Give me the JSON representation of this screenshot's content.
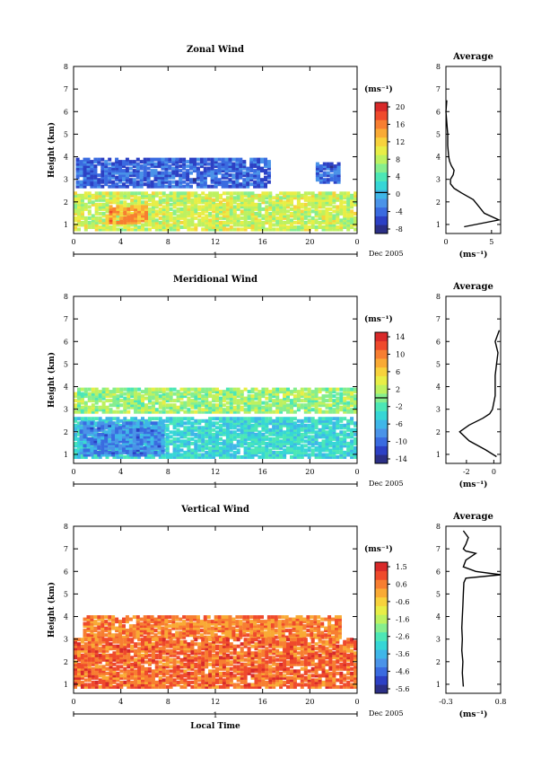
{
  "figure": {
    "date_label": "Dec 2005",
    "day_label": "1",
    "xlabel_bottom": "Local Time",
    "ylabel": "Height (km)",
    "unit_label": "(ms⁻¹)",
    "avg_title": "Average",
    "avg_xlabel": "(ms⁻¹)"
  },
  "colormap": [
    "#2b2f86",
    "#2c40c4",
    "#3a6be0",
    "#4a93e8",
    "#3fb6e8",
    "#36d6d6",
    "#4ce7b6",
    "#86ee8e",
    "#bdf160",
    "#e8ee46",
    "#f7d23c",
    "#f9aa35",
    "#f77e31",
    "#ef4a2c",
    "#d82a2a"
  ],
  "chart_data": [
    {
      "type": "heatmap",
      "title": "Zonal Wind",
      "x_ticks": [
        "0",
        "4",
        "8",
        "12",
        "16",
        "20",
        "0"
      ],
      "x_range": [
        0,
        24
      ],
      "y_ticks": [
        "1",
        "2",
        "3",
        "4",
        "5",
        "6",
        "7",
        "8"
      ],
      "y_range": [
        0.6,
        8
      ],
      "clim": [
        -10,
        22
      ],
      "colorbar_ticks": [
        "20",
        "16",
        "12",
        "8",
        "4",
        "0",
        "-4",
        "-8"
      ],
      "colorbar_zero_line": 0,
      "regions": [
        {
          "t0": 0.2,
          "t1": 16.5,
          "z0": 2.6,
          "z1": 3.9,
          "value": -5
        },
        {
          "t0": 20.5,
          "t1": 22.5,
          "z0": 2.8,
          "z1": 3.7,
          "value": -5
        },
        {
          "t0": 0,
          "t1": 24,
          "z0": 0.7,
          "z1": 2.4,
          "value": 9
        },
        {
          "t0": 3,
          "t1": 6,
          "z0": 1,
          "z1": 1.8,
          "value": 15
        }
      ],
      "average": {
        "xlim": [
          0,
          6
        ],
        "x_ticks": [
          "0",
          "5"
        ],
        "height": [
          0.9,
          1.2,
          1.5,
          1.8,
          2.1,
          2.4,
          2.6,
          2.8,
          3.0,
          3.2,
          3.4,
          3.6,
          3.8,
          4.0,
          4.5,
          5.0,
          5.5,
          6.0,
          6.5
        ],
        "value": [
          2.0,
          5.8,
          4.2,
          3.6,
          3.0,
          1.7,
          0.9,
          0.5,
          0.5,
          0.8,
          0.9,
          0.6,
          0.4,
          0.3,
          0.2,
          0.2,
          0.1,
          0.0,
          0.1
        ]
      }
    },
    {
      "type": "heatmap",
      "title": "Meridional Wind",
      "x_ticks": [
        "0",
        "4",
        "8",
        "12",
        "16",
        "20",
        "0"
      ],
      "x_range": [
        0,
        24
      ],
      "y_ticks": [
        "1",
        "2",
        "3",
        "4",
        "5",
        "6",
        "7",
        "8"
      ],
      "y_range": [
        0.6,
        8
      ],
      "clim": [
        -16,
        16
      ],
      "colorbar_ticks": [
        "14",
        "10",
        "6",
        "2",
        "-2",
        "-6",
        "-10",
        "-14"
      ],
      "colorbar_zero_line": 0,
      "regions": [
        {
          "t0": 0,
          "t1": 24,
          "z0": 2.8,
          "z1": 3.9,
          "value": 1
        },
        {
          "t0": 0,
          "t1": 24,
          "z0": 0.8,
          "z1": 2.6,
          "value": -4
        },
        {
          "t0": 0.5,
          "t1": 7.5,
          "z0": 0.9,
          "z1": 2.4,
          "value": -9
        }
      ],
      "average": {
        "xlim": [
          -3.5,
          0.5
        ],
        "x_ticks": [
          "-2",
          "0"
        ],
        "height": [
          0.9,
          1.2,
          1.6,
          2.0,
          2.3,
          2.6,
          2.8,
          3.0,
          3.3,
          3.6,
          4.0,
          4.5,
          5.0,
          5.5,
          6.0,
          6.5
        ],
        "value": [
          0.2,
          -0.6,
          -1.8,
          -2.5,
          -1.8,
          -0.8,
          -0.3,
          -0.1,
          0.0,
          0.1,
          0.1,
          0.1,
          0.2,
          0.3,
          0.1,
          0.4
        ]
      }
    },
    {
      "type": "heatmap",
      "title": "Vertical Wind",
      "x_ticks": [
        "0",
        "4",
        "8",
        "12",
        "16",
        "20",
        "0"
      ],
      "x_range": [
        0,
        24
      ],
      "y_ticks": [
        "1",
        "2",
        "3",
        "4",
        "5",
        "6",
        "7",
        "8"
      ],
      "y_range": [
        0.6,
        8
      ],
      "clim": [
        -6,
        2
      ],
      "colorbar_ticks": [
        "1.5",
        "0.6",
        "-0.6",
        "-1.6",
        "-2.6",
        "-3.6",
        "-4.6",
        "-5.6"
      ],
      "colorbar_zero_line": null,
      "regions": [
        {
          "t0": 0.8,
          "t1": 22.5,
          "z0": 3.0,
          "z1": 4.0,
          "value": 0.6
        },
        {
          "t0": 0,
          "t1": 24,
          "z0": 0.8,
          "z1": 3.0,
          "value": 0.9
        }
      ],
      "average": {
        "xlim": [
          -0.3,
          0.8
        ],
        "x_ticks": [
          "-0.3",
          "0.8"
        ],
        "height": [
          0.9,
          1.5,
          2.0,
          2.5,
          3.0,
          3.5,
          4.0,
          4.5,
          5.0,
          5.5,
          5.7,
          5.85,
          6.0,
          6.2,
          6.5,
          6.8,
          6.9,
          7.0,
          7.2,
          7.5,
          7.8
        ],
        "value": [
          0.05,
          0.03,
          0.04,
          0.02,
          0.03,
          0.02,
          0.03,
          0.04,
          0.05,
          0.06,
          0.1,
          0.8,
          0.3,
          0.05,
          0.1,
          0.3,
          0.1,
          0.05,
          0.1,
          0.15,
          0.05
        ]
      }
    }
  ]
}
